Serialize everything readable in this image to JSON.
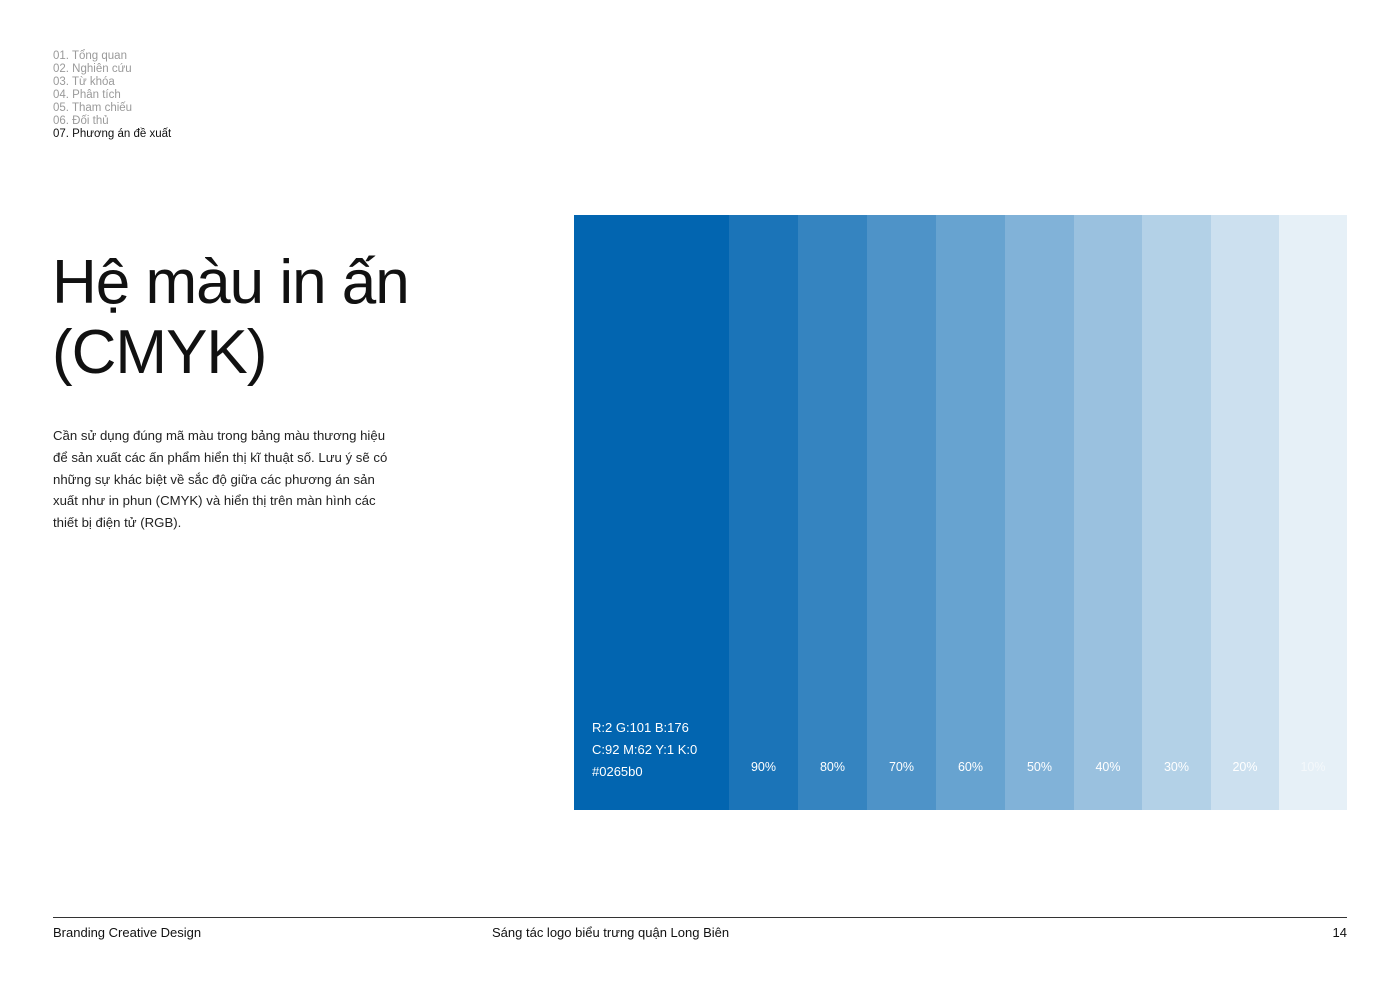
{
  "toc": [
    {
      "label": "01. Tổng quan",
      "active": false
    },
    {
      "label": "02. Nghiên cứu",
      "active": false
    },
    {
      "label": "03. Từ khóa",
      "active": false
    },
    {
      "label": "04. Phân tích",
      "active": false
    },
    {
      "label": "05. Tham chiếu",
      "active": false
    },
    {
      "label": "06. Đối thủ",
      "active": false
    },
    {
      "label": "07. Phương án đề xuất",
      "active": true
    }
  ],
  "title": {
    "line1": "Hệ màu in ấn",
    "line2": "(CMYK)"
  },
  "description": "Cần sử dụng đúng mã màu trong bảng màu thương hiệu để sản xuất các ấn phẩm hiển thị kĩ thuật số. Lưu ý sẽ có những sự khác biệt về sắc độ giữa các phương án sản xuất như in phun (CMYK) và hiển thị trên màn hình các thiết bị điện tử (RGB).",
  "palette": {
    "base": {
      "color": "#0265b0",
      "rgb": "R:2  G:101  B:176",
      "cmyk": "C:92  M:62  Y:1  K:0",
      "hex": "#0265b0"
    },
    "tints": [
      {
        "label": "90%",
        "color": "#1b74b8",
        "text_color": "#ffffff"
      },
      {
        "label": "80%",
        "color": "#3584c0",
        "text_color": "#ffffff"
      },
      {
        "label": "70%",
        "color": "#4e93c8",
        "text_color": "#ffffff"
      },
      {
        "label": "60%",
        "color": "#67a3d0",
        "text_color": "#ffffff"
      },
      {
        "label": "50%",
        "color": "#81b2d8",
        "text_color": "#ffffff"
      },
      {
        "label": "40%",
        "color": "#9ac1df",
        "text_color": "#ffffff"
      },
      {
        "label": "30%",
        "color": "#b3d1e7",
        "text_color": "#ffffff"
      },
      {
        "label": "20%",
        "color": "#cce0ef",
        "text_color": "#ffffff"
      },
      {
        "label": "10%",
        "color": "#e6f0f7",
        "text_color": "#f4f8fb"
      }
    ]
  },
  "footer": {
    "left": "Branding Creative Design",
    "center": "Sáng tác logo biểu trưng quận Long Biên",
    "page": "14"
  }
}
